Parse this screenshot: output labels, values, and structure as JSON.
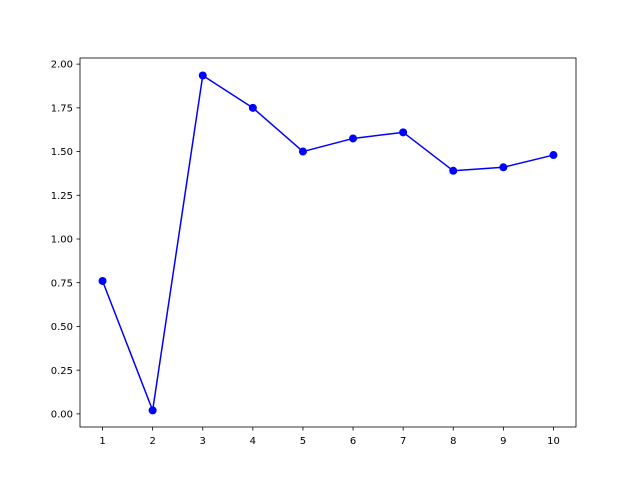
{
  "chart_data": {
    "type": "line",
    "title": "",
    "xlabel": "",
    "ylabel": "",
    "x": [
      1,
      2,
      3,
      4,
      5,
      6,
      7,
      8,
      9,
      10
    ],
    "series": [
      {
        "values": [
          0.76,
          0.02,
          1.935,
          1.75,
          1.5,
          1.575,
          1.61,
          1.39,
          1.41,
          1.48
        ],
        "color": "#0000ff",
        "marker": "circle"
      }
    ],
    "xlim": [
      0.55,
      10.45
    ],
    "ylim": [
      -0.075,
      2.035
    ],
    "xticks": [
      1,
      2,
      3,
      4,
      5,
      6,
      7,
      8,
      9,
      10
    ],
    "xtick_labels": [
      "1",
      "2",
      "3",
      "4",
      "5",
      "6",
      "7",
      "8",
      "9",
      "10"
    ],
    "yticks": [
      0,
      0.25,
      0.5,
      0.75,
      1.0,
      1.25,
      1.5,
      1.75,
      2.0
    ],
    "ytick_labels": [
      "0.00",
      "0.25",
      "0.50",
      "0.75",
      "1.00",
      "1.25",
      "1.50",
      "1.75",
      "2.00"
    ],
    "grid": false,
    "legend": false
  }
}
